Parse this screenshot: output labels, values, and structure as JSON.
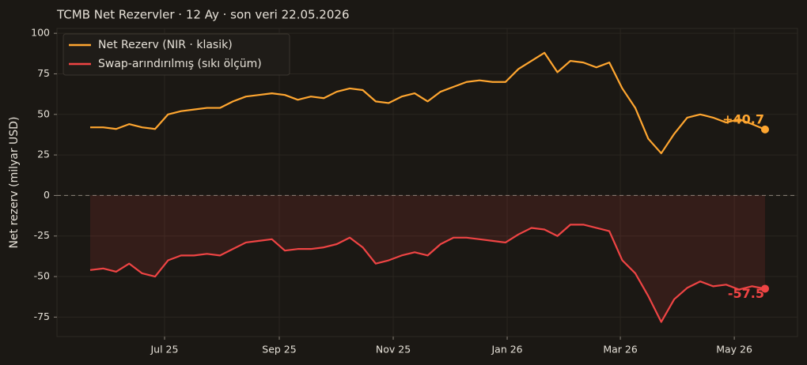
{
  "chart_data": {
    "type": "line",
    "title": "TCMB Net Rezervler · 12 Ay · son veri 22.05.2026",
    "y_label": "Net rezerv (milyar USD)",
    "xlim": [
      -2.56,
      54.5
    ],
    "xticks": [
      {
        "value": 5.73,
        "label": "Jul 25"
      },
      {
        "value": 14.57,
        "label": "Sep 25"
      },
      {
        "value": 23.35,
        "label": "Nov 25"
      },
      {
        "value": 32.13,
        "label": "Jan 26"
      },
      {
        "value": 40.85,
        "label": "Mar 26"
      },
      {
        "value": 49.63,
        "label": "May 26"
      }
    ],
    "ylim": [
      -87,
      103
    ],
    "yticks": [
      -75,
      -50,
      -25,
      0,
      25,
      50,
      75,
      100
    ],
    "grid": true,
    "legend": "upper left",
    "series": [
      {
        "name": "Net Rezerv (NIR · klasik)",
        "color": "#ffa630",
        "last_label": "+40.7",
        "values": [
          42,
          42,
          41,
          44,
          42,
          41,
          50,
          52,
          53,
          54,
          54,
          58,
          61,
          62,
          63,
          62,
          59,
          61,
          60,
          64,
          66,
          65,
          58,
          57,
          61,
          63,
          58,
          64,
          67,
          70,
          71,
          70,
          70,
          78,
          83,
          88,
          76,
          83,
          82,
          79,
          82,
          66,
          54,
          35,
          26,
          38,
          48,
          50,
          48,
          45,
          47,
          44,
          40.7
        ]
      },
      {
        "name": "Swap-arındırılmış (sıkı ölçüm)",
        "color": "#ef4444",
        "last_label": "-57.5",
        "fill": true,
        "values": [
          -46,
          -45,
          -47,
          -42,
          -48,
          -50,
          -40,
          -37,
          -37,
          -36,
          -37,
          -33,
          -29,
          -28,
          -27,
          -34,
          -33,
          -33,
          -32,
          -30,
          -26,
          -32,
          -42,
          -40,
          -37,
          -35,
          -37,
          -30,
          -26,
          -26,
          -27,
          -28,
          -29,
          -24,
          -20,
          -21,
          -25,
          -18,
          -18,
          -20,
          -22,
          -40,
          -48,
          -62,
          -78,
          -64,
          -57,
          -53,
          -56,
          -55,
          -58,
          -56,
          -57.5
        ]
      }
    ]
  }
}
